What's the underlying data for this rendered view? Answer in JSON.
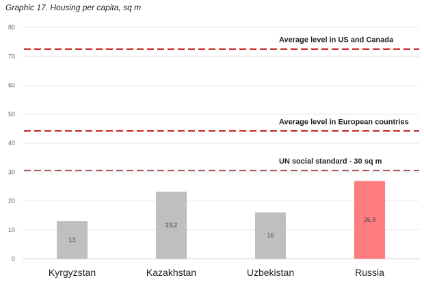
{
  "chart_data": {
    "type": "bar",
    "title": "Graphic 17. Housing per capita, sq m",
    "xlabel": "",
    "ylabel": "",
    "ylim": [
      0,
      80
    ],
    "yticks": [
      "0",
      "10",
      "20",
      "30",
      "40",
      "50",
      "60",
      "70",
      "80"
    ],
    "grid": true,
    "categories": [
      "Kyrgyzstan",
      "Kazakhstan",
      "Uzbekistan",
      "Russia"
    ],
    "values": [
      13,
      23.2,
      16,
      26.9
    ],
    "data_labels": [
      "13",
      "23,2",
      "16",
      "26,9"
    ],
    "bar_colors": [
      "#bfbfbf",
      "#bfbfbf",
      "#bfbfbf",
      "#ff7c80"
    ],
    "reference_lines": [
      {
        "label": "Average level in US and Canada",
        "value": 72.5,
        "color": "#c00000"
      },
      {
        "label": "Average level in European countries",
        "value": 44.2,
        "color": "#c00000"
      },
      {
        "label": "UN social standard - 30 sq m",
        "value": 30.5,
        "color": "#a05050"
      }
    ]
  }
}
